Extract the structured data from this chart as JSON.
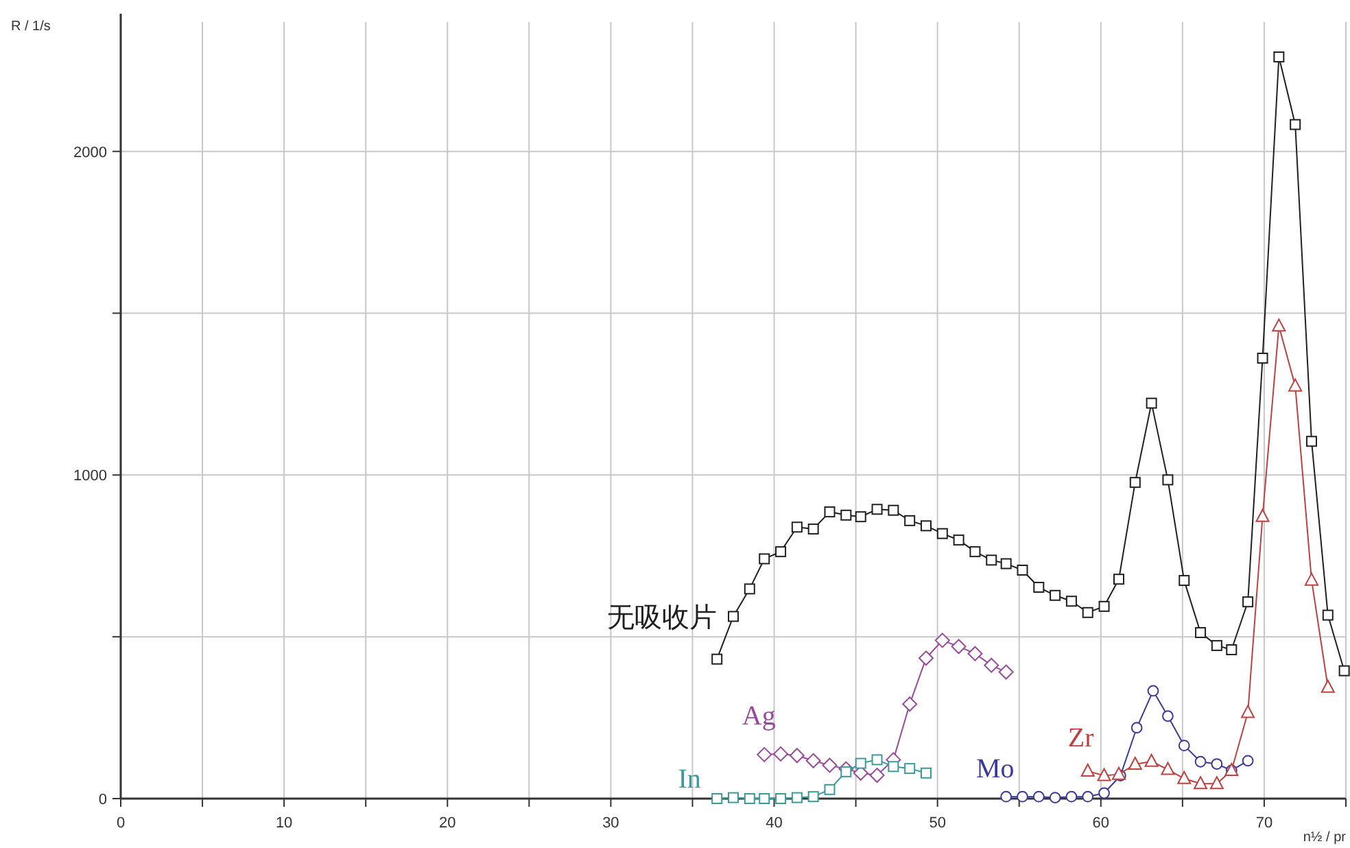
{
  "chart_data": {
    "type": "line",
    "xlabel": "n½ / pr",
    "ylabel": "R / 1/s",
    "xlim": [
      0,
      75
    ],
    "ylim": [
      0,
      2400
    ],
    "xticks": [
      0,
      {
        "value": 5,
        "label": null
      },
      10,
      {
        "value": 15,
        "label": null
      },
      20,
      {
        "value": 25,
        "label": null
      },
      30,
      {
        "value": 35,
        "label": null
      },
      40,
      {
        "value": 45,
        "label": null
      },
      50,
      {
        "value": 55,
        "label": null
      },
      60,
      {
        "value": 65,
        "label": null
      },
      70,
      {
        "value": 75,
        "label": null
      }
    ],
    "yticks": [
      0,
      {
        "value": 500,
        "label": null
      },
      1000,
      {
        "value": 1500,
        "label": null
      },
      2000
    ],
    "grid": true,
    "line_style": "solid",
    "series": [
      {
        "name": "无吸收片",
        "color": "#202020",
        "marker": "square",
        "x": [
          36.5,
          37.5,
          38.5,
          39.4,
          40.4,
          41.4,
          42.4,
          43.4,
          44.4,
          45.3,
          46.3,
          47.3,
          48.3,
          49.3,
          50.3,
          51.3,
          52.3,
          53.3,
          54.2,
          55.2,
          56.2,
          57.2,
          58.2,
          59.2,
          60.2,
          61.1,
          62.1,
          63.1,
          64.1,
          65.1,
          66.1,
          67.1,
          68.0,
          69.0,
          69.9,
          70.9,
          71.9,
          72.9,
          73.9,
          74.9
        ],
        "values": [
          431,
          563,
          648,
          741,
          763,
          839,
          833,
          886,
          876,
          871,
          894,
          891,
          859,
          843,
          819,
          799,
          763,
          737,
          726,
          706,
          653,
          628,
          610,
          575,
          594,
          678,
          977,
          1222,
          985,
          674,
          513,
          473,
          460,
          608,
          1361,
          2292,
          2083,
          1104,
          567,
          395
        ]
      },
      {
        "name": "Ag",
        "color": "#9a4a9a",
        "marker": "diamond",
        "x": [
          39.4,
          40.4,
          41.4,
          42.4,
          43.4,
          44.4,
          45.3,
          46.3,
          47.3,
          48.3,
          49.3,
          50.3,
          51.3,
          52.3,
          53.3,
          54.2
        ],
        "values": [
          136,
          138,
          133,
          117,
          103,
          92,
          79,
          72,
          120,
          292,
          434,
          489,
          470,
          448,
          412,
          391
        ]
      },
      {
        "name": "In",
        "color": "#3a9a9a",
        "marker": "square",
        "x": [
          36.5,
          37.5,
          38.5,
          39.4,
          40.4,
          41.4,
          42.4,
          43.4,
          44.4,
          45.3,
          46.3,
          47.3,
          48.3,
          49.3
        ],
        "values": [
          0,
          3,
          0,
          0,
          0,
          3,
          6,
          28,
          83,
          109,
          120,
          99,
          93,
          79
        ]
      },
      {
        "name": "Mo",
        "color": "#3a3a9a",
        "marker": "circle",
        "x": [
          54.2,
          55.2,
          56.2,
          57.2,
          58.2,
          59.2,
          60.2,
          61.2,
          62.2,
          63.2,
          64.1,
          65.1,
          66.1,
          67.1,
          68.0,
          69.0
        ],
        "values": [
          6,
          6,
          6,
          3,
          6,
          6,
          17,
          71,
          219,
          333,
          255,
          164,
          114,
          107,
          87,
          117
        ]
      },
      {
        "name": "Zr",
        "color": "#c04040",
        "marker": "triangle",
        "x": [
          59.2,
          60.2,
          61.1,
          62.1,
          63.1,
          64.1,
          65.1,
          66.1,
          67.1,
          68.0,
          69.0,
          69.9,
          70.9,
          71.9,
          72.9,
          73.9
        ],
        "values": [
          85,
          71,
          75,
          106,
          115,
          90,
          62,
          46,
          46,
          87,
          266,
          872,
          1460,
          1275,
          675,
          344
        ]
      }
    ]
  }
}
